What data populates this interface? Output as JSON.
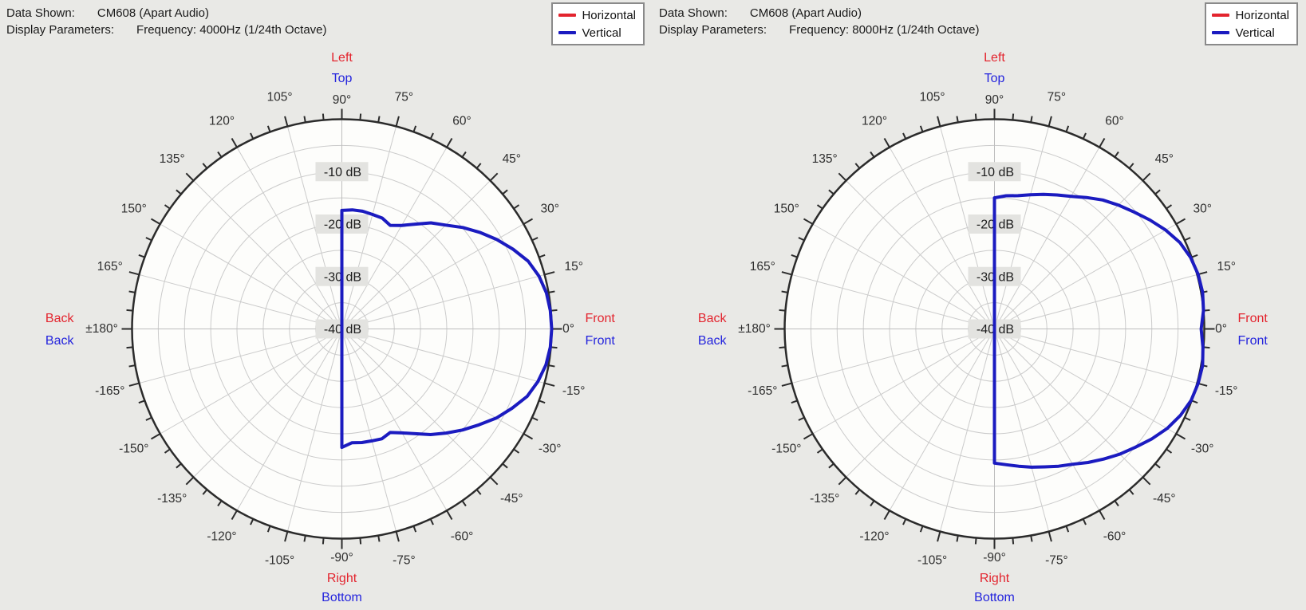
{
  "colors": {
    "page_bg": "#e9e9e6",
    "plot_bg": "#fdfdfb",
    "grid": "#cbcbcb",
    "axis_cross": "#bdbdbd",
    "outline": "#2b2b2b",
    "angle_label": "#2e2e2e",
    "db_label_text": "#1c1c1c",
    "db_label_bg": "#e3e3e0",
    "red": "#e3242e",
    "blue": "#2323dd",
    "curve_blue": "#1b1bc0",
    "header_text": "#1a1a1a",
    "legend_border": "#8a8a8a",
    "legend_bg": "#ffffff"
  },
  "panels": [
    {
      "header": {
        "data_shown_label": "Data Shown:",
        "data_shown_value": "CM608 (Apart Audio)",
        "display_parameters_label": "Display Parameters:",
        "display_parameters_value": "Frequency: 4000Hz (1/24th Octave)"
      },
      "legend": {
        "items": [
          {
            "label": "Horizontal",
            "color": "#e3242e"
          },
          {
            "label": "Vertical",
            "color": "#1b1bc0"
          }
        ]
      },
      "chart_data": {
        "type": "line",
        "polar": true,
        "title": "CM608 (Apart Audio) polar response, 4000Hz (1/24th Octave)",
        "frequency": "4000Hz",
        "bandwidth": "1/24th Octave",
        "radial_axis": {
          "unit": "dB",
          "min_db": -40,
          "max_db": 0,
          "ring_step_db": 5,
          "ring_labels": [
            {
              "db": -10,
              "text": "-10 dB"
            },
            {
              "db": -20,
              "text": "-20 dB"
            },
            {
              "db": -30,
              "text": "-30 dB"
            },
            {
              "db": -40,
              "text": "-40 dB"
            }
          ]
        },
        "angular_axis": {
          "tick_step_deg": 5,
          "major_step_deg": 15,
          "labels": [
            {
              "angle": 90,
              "text": "90°"
            },
            {
              "angle": 75,
              "text": "75°"
            },
            {
              "angle": 60,
              "text": "60°"
            },
            {
              "angle": 45,
              "text": "45°"
            },
            {
              "angle": 30,
              "text": "30°"
            },
            {
              "angle": 15,
              "text": "15°"
            },
            {
              "angle": 0,
              "text": "0°"
            },
            {
              "angle": -15,
              "text": "-15°"
            },
            {
              "angle": -30,
              "text": "-30°"
            },
            {
              "angle": -45,
              "text": "-45°"
            },
            {
              "angle": -60,
              "text": "-60°"
            },
            {
              "angle": -75,
              "text": "-75°"
            },
            {
              "angle": -90,
              "text": "-90°"
            },
            {
              "angle": -105,
              "text": "-105°"
            },
            {
              "angle": -120,
              "text": "-120°"
            },
            {
              "angle": -135,
              "text": "-135°"
            },
            {
              "angle": -150,
              "text": "-150°"
            },
            {
              "angle": -165,
              "text": "-165°"
            },
            {
              "angle": 180,
              "text": "±180°"
            },
            {
              "angle": 165,
              "text": "165°"
            },
            {
              "angle": 150,
              "text": "150°"
            },
            {
              "angle": 135,
              "text": "135°"
            },
            {
              "angle": 120,
              "text": "120°"
            },
            {
              "angle": 105,
              "text": "105°"
            }
          ]
        },
        "orientation_labels": {
          "top": [
            {
              "text": "Left",
              "color": "red"
            },
            {
              "text": "Top",
              "color": "blue"
            }
          ],
          "right": [
            {
              "text": "Front",
              "color": "red"
            },
            {
              "text": "Front",
              "color": "blue"
            }
          ],
          "bottom": [
            {
              "text": "Right",
              "color": "red"
            },
            {
              "text": "Bottom",
              "color": "blue"
            }
          ],
          "left": [
            {
              "text": "Back",
              "color": "red"
            },
            {
              "text": "Back",
              "color": "blue"
            }
          ]
        },
        "series": [
          {
            "name": "Vertical",
            "color": "#1b1bc0",
            "points_deg_db": [
              [
                90,
                -17.4
              ],
              [
                85,
                -17.2
              ],
              [
                80,
                -17.2
              ],
              [
                75,
                -17.4
              ],
              [
                70,
                -17.5
              ],
              [
                65,
                -18.2
              ],
              [
                60,
                -17.2
              ],
              [
                55,
                -15.6
              ],
              [
                50,
                -13.6
              ],
              [
                45,
                -12.0
              ],
              [
                40,
                -9.9
              ],
              [
                35,
                -7.9
              ],
              [
                30,
                -5.9
              ],
              [
                25,
                -4.0
              ],
              [
                20,
                -2.2
              ],
              [
                15,
                -1.1
              ],
              [
                10,
                -0.4
              ],
              [
                5,
                -0.1
              ],
              [
                0,
                0.0
              ],
              [
                -5,
                -0.1
              ],
              [
                -10,
                -0.5
              ],
              [
                -15,
                -1.3
              ],
              [
                -20,
                -2.4
              ],
              [
                -25,
                -4.2
              ],
              [
                -30,
                -6.0
              ],
              [
                -35,
                -8.1
              ],
              [
                -40,
                -10.0
              ],
              [
                -45,
                -11.9
              ],
              [
                -50,
                -13.7
              ],
              [
                -55,
                -15.6
              ],
              [
                -60,
                -17.1
              ],
              [
                -65,
                -18.2
              ],
              [
                -70,
                -17.7
              ],
              [
                -75,
                -17.9
              ],
              [
                -80,
                -18.0
              ],
              [
                -85,
                -18.2
              ],
              [
                -90,
                -17.4
              ]
            ]
          }
        ]
      }
    },
    {
      "header": {
        "data_shown_label": "Data Shown:",
        "data_shown_value": "CM608 (Apart Audio)",
        "display_parameters_label": "Display Parameters:",
        "display_parameters_value": "Frequency: 8000Hz (1/24th Octave)"
      },
      "legend": {
        "items": [
          {
            "label": "Horizontal",
            "color": "#e3242e"
          },
          {
            "label": "Vertical",
            "color": "#1b1bc0"
          }
        ]
      },
      "chart_data": {
        "type": "line",
        "polar": true,
        "title": "CM608 (Apart Audio) polar response, 8000Hz (1/24th Octave)",
        "frequency": "8000Hz",
        "bandwidth": "1/24th Octave",
        "radial_axis": {
          "unit": "dB",
          "min_db": -40,
          "max_db": 0,
          "ring_step_db": 5,
          "ring_labels": [
            {
              "db": -10,
              "text": "-10 dB"
            },
            {
              "db": -20,
              "text": "-20 dB"
            },
            {
              "db": -30,
              "text": "-30 dB"
            },
            {
              "db": -40,
              "text": "-40 dB"
            }
          ]
        },
        "angular_axis": {
          "tick_step_deg": 5,
          "major_step_deg": 15,
          "labels": [
            {
              "angle": 90,
              "text": "90°"
            },
            {
              "angle": 75,
              "text": "75°"
            },
            {
              "angle": 60,
              "text": "60°"
            },
            {
              "angle": 45,
              "text": "45°"
            },
            {
              "angle": 30,
              "text": "30°"
            },
            {
              "angle": 15,
              "text": "15°"
            },
            {
              "angle": 0,
              "text": "0°"
            },
            {
              "angle": -15,
              "text": "-15°"
            },
            {
              "angle": -30,
              "text": "-30°"
            },
            {
              "angle": -45,
              "text": "-45°"
            },
            {
              "angle": -60,
              "text": "-60°"
            },
            {
              "angle": -75,
              "text": "-75°"
            },
            {
              "angle": -90,
              "text": "-90°"
            },
            {
              "angle": -105,
              "text": "-105°"
            },
            {
              "angle": -120,
              "text": "-120°"
            },
            {
              "angle": -135,
              "text": "-135°"
            },
            {
              "angle": -150,
              "text": "-150°"
            },
            {
              "angle": -165,
              "text": "-165°"
            },
            {
              "angle": 180,
              "text": "±180°"
            },
            {
              "angle": 165,
              "text": "165°"
            },
            {
              "angle": 150,
              "text": "150°"
            },
            {
              "angle": 135,
              "text": "135°"
            },
            {
              "angle": 120,
              "text": "120°"
            },
            {
              "angle": 105,
              "text": "105°"
            }
          ]
        },
        "orientation_labels": {
          "top": [
            {
              "text": "Left",
              "color": "red"
            },
            {
              "text": "Top",
              "color": "blue"
            }
          ],
          "right": [
            {
              "text": "Front",
              "color": "red"
            },
            {
              "text": "Front",
              "color": "blue"
            }
          ],
          "bottom": [
            {
              "text": "Right",
              "color": "red"
            },
            {
              "text": "Bottom",
              "color": "blue"
            }
          ],
          "left": [
            {
              "text": "Back",
              "color": "red"
            },
            {
              "text": "Back",
              "color": "blue"
            }
          ]
        },
        "series": [
          {
            "name": "Vertical",
            "color": "#1b1bc0",
            "points_deg_db": [
              [
                90,
                -15.0
              ],
              [
                85,
                -14.5
              ],
              [
                80,
                -14.2
              ],
              [
                75,
                -13.5
              ],
              [
                70,
                -12.7
              ],
              [
                65,
                -11.8
              ],
              [
                60,
                -10.8
              ],
              [
                55,
                -9.4
              ],
              [
                50,
                -7.9
              ],
              [
                45,
                -6.6
              ],
              [
                40,
                -5.3
              ],
              [
                35,
                -3.8
              ],
              [
                30,
                -2.3
              ],
              [
                25,
                -1.0
              ],
              [
                20,
                -0.2
              ],
              [
                15,
                0.2
              ],
              [
                10,
                0.3
              ],
              [
                5,
                0.0
              ],
              [
                0,
                -0.6
              ],
              [
                -5,
                -0.1
              ],
              [
                -10,
                0.3
              ],
              [
                -15,
                0.2
              ],
              [
                -20,
                -0.1
              ],
              [
                -25,
                -0.9
              ],
              [
                -30,
                -2.0
              ],
              [
                -35,
                -3.4
              ],
              [
                -40,
                -4.9
              ],
              [
                -45,
                -6.2
              ],
              [
                -50,
                -7.6
              ],
              [
                -55,
                -8.9
              ],
              [
                -60,
                -10.2
              ],
              [
                -65,
                -11.1
              ],
              [
                -70,
                -12.0
              ],
              [
                -75,
                -12.7
              ],
              [
                -80,
                -13.4
              ],
              [
                -85,
                -14.0
              ],
              [
                -90,
                -14.4
              ]
            ]
          }
        ]
      }
    }
  ]
}
